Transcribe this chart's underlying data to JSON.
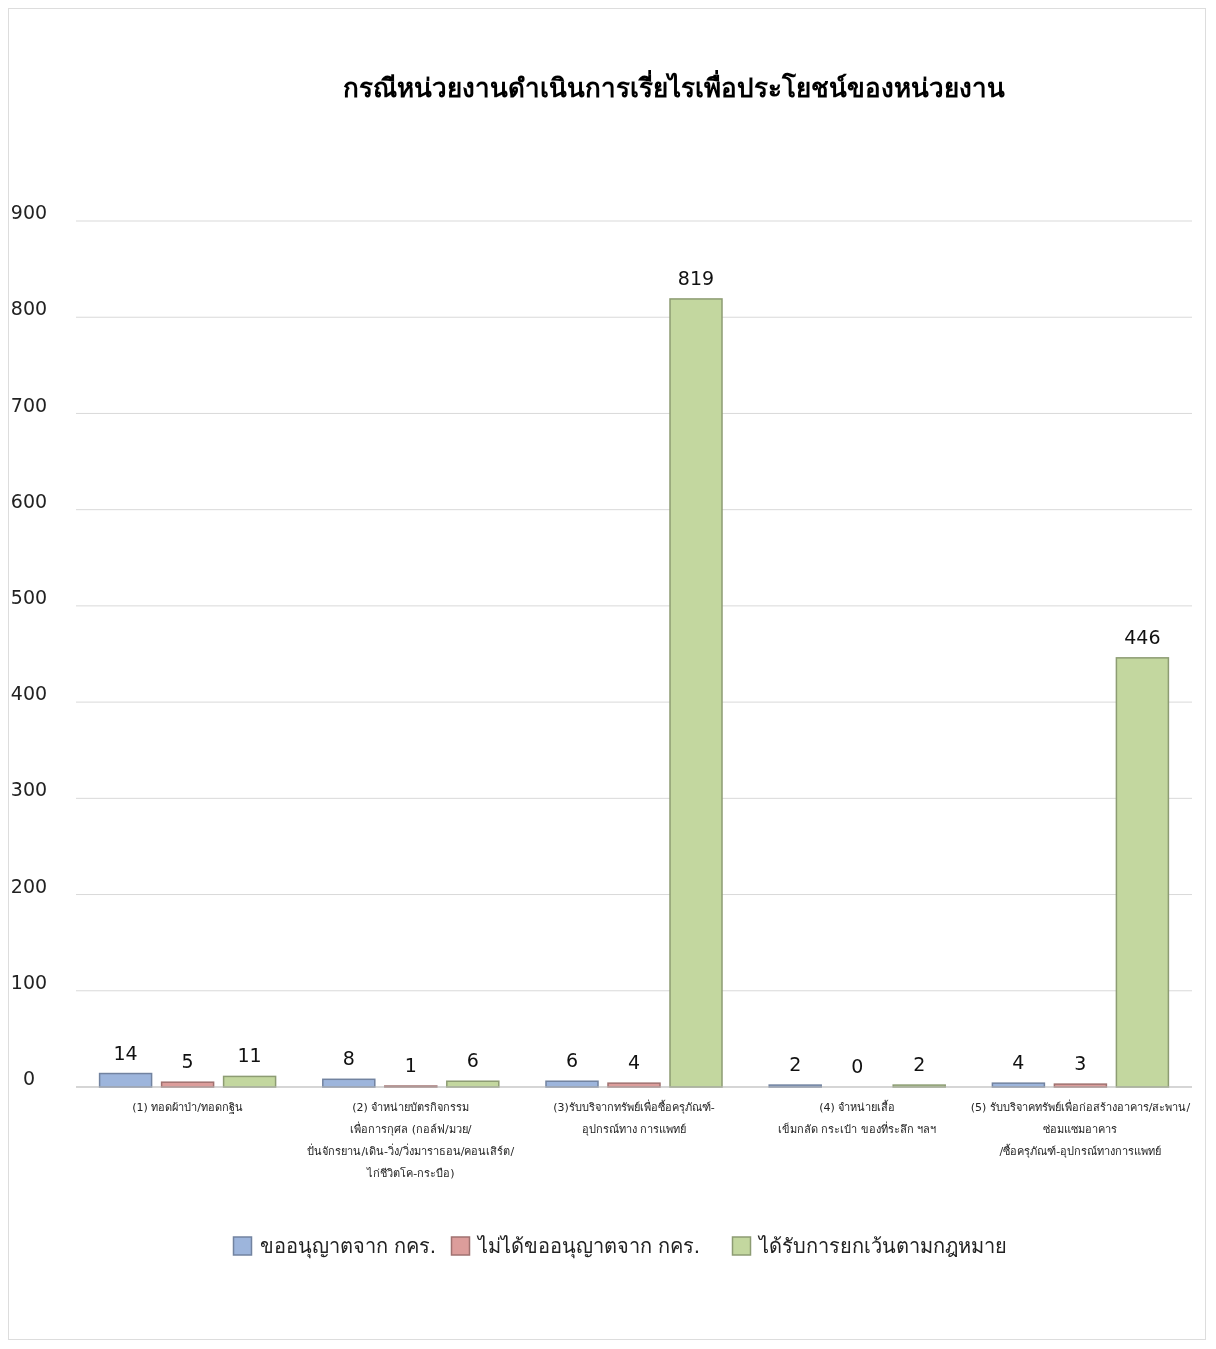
{
  "chart_data": {
    "type": "bar",
    "title": "กรณีหน่วยงานดำเนินการเรี่ยไรเพื่อประโยชน์ของหน่วยงาน",
    "categories": [
      "(1) ทอดผ้าป่า/ทอดกฐิน",
      "(2) จำหน่ายบัตรกิจกรรม\nเพื่อการกุศล (กอล์ฟ/มวย/\nปั่นจักรยาน/เดิน-วิ่ง/วิ่งมาราธอน/คอนเสิร์ต/\nไก่ชีวิตโค-กระบือ)",
      "(3)รับบริจากทรัพย์เพื่อซื้อครุภัณฑ์-\nอุปกรณ์ทาง  การแพทย์",
      "(4) จำหน่ายเสื้อ\nเข็มกลัด กระเป๋า ของที่ระลึก ฯลฯ",
      "(5) รับบริจาคทรัพย์เพื่อก่อสร้างอาคาร/สะพาน/\nซ่อมแซมอาคาร\n/ซื้อครุภัณฑ์-อุปกรณ์ทางการแพทย์"
    ],
    "series": [
      {
        "name": "ขออนุญาตจาก กคร.",
        "color": "#9db5dc",
        "values": [
          14,
          8,
          6,
          2,
          4
        ]
      },
      {
        "name": "ไม่ได้ขออนุญาตจาก กคร.",
        "color": "#dc9d9b",
        "values": [
          5,
          1,
          4,
          0,
          3
        ]
      },
      {
        "name": "ได้รับการยกเว้นตามกฎหมาย",
        "color": "#c3d79f",
        "values": [
          11,
          6,
          819,
          2,
          446
        ]
      }
    ],
    "ylim": [
      0,
      900
    ],
    "yticks": [
      0,
      100,
      200,
      300,
      400,
      500,
      600,
      700,
      800,
      900
    ],
    "grid": "y",
    "legend": "bottom",
    "data_labels": true
  }
}
